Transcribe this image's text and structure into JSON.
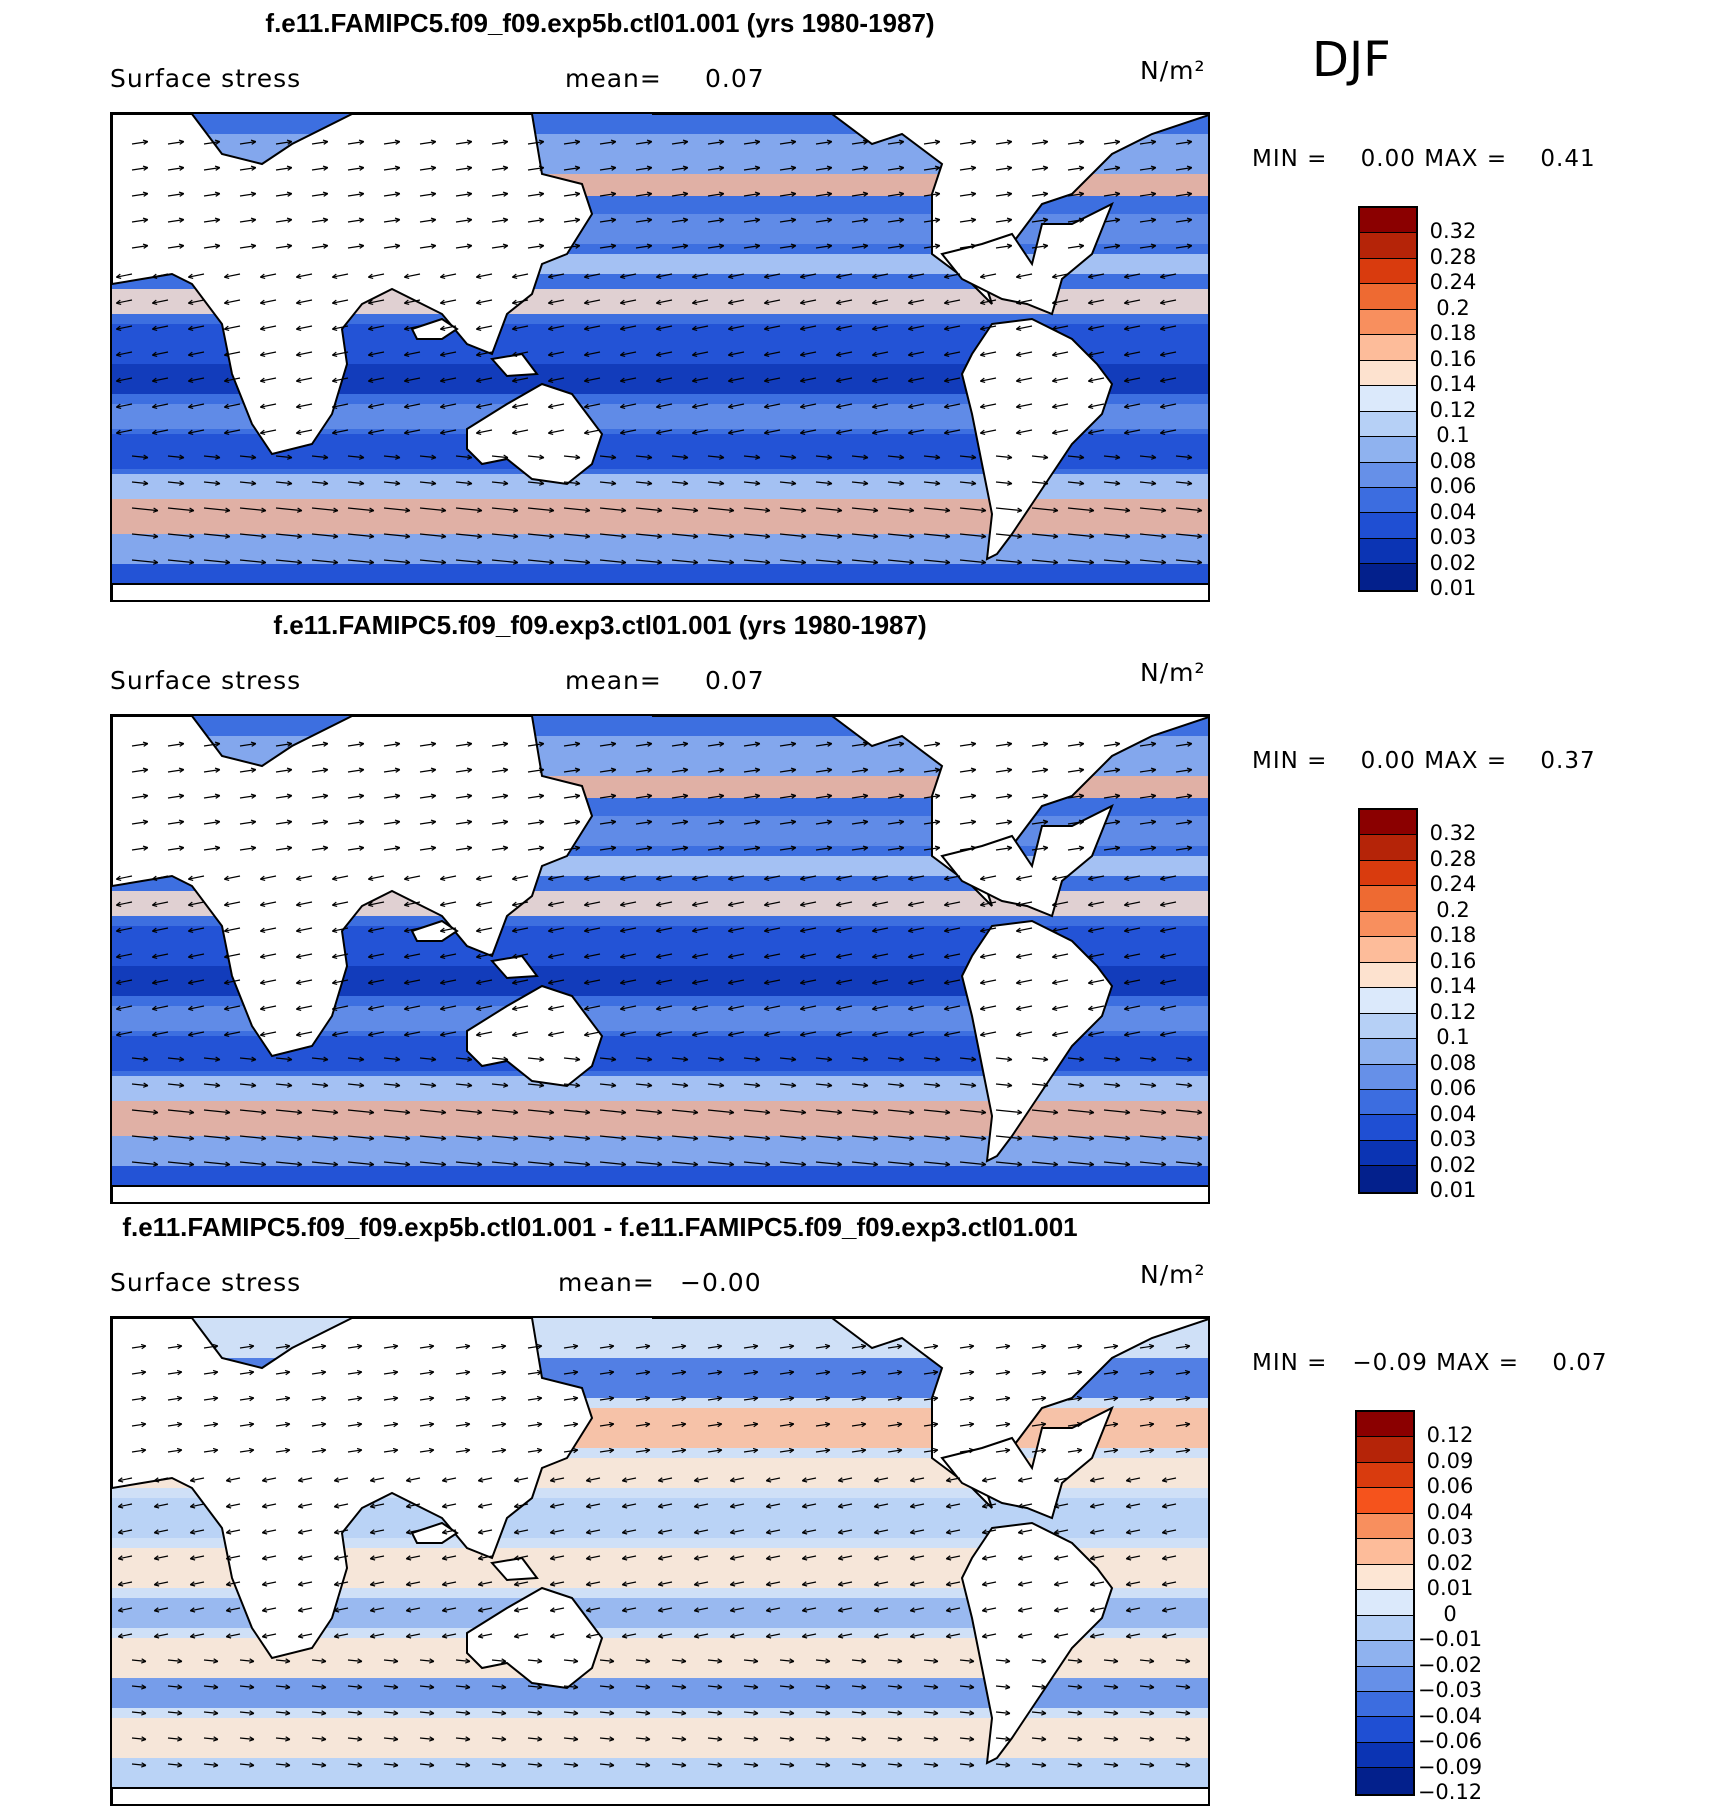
{
  "season": "DJF",
  "panels": [
    {
      "title": "f.e11.FAMIPC5.f09_f09.exp5b.ctl01.001 (yrs 1980-1987)",
      "variable": "Surface stress",
      "mean_label": "mean=",
      "mean_value": "0.07",
      "units": "N/m²",
      "min_label": "MIN =",
      "min_value": "0.00",
      "max_label": "MAX =",
      "max_value": "0.41",
      "colorbar": {
        "colors": [
          "#8b0000",
          "#b52408",
          "#d93b0e",
          "#ee6a32",
          "#f88f5e",
          "#fdbc9a",
          "#fde2cf",
          "#dbe9fb",
          "#b6d0f6",
          "#8fb2ef",
          "#6690e8",
          "#3c6de0",
          "#1f4fd3",
          "#0b34b4",
          "#03208c"
        ],
        "ticks": [
          "0.32",
          "0.28",
          "0.24",
          "0.2",
          "0.18",
          "0.16",
          "0.14",
          "0.12",
          "0.1",
          "0.08",
          "0.06",
          "0.04",
          "0.03",
          "0.02",
          "0.01"
        ]
      },
      "field": {
        "base_color": "#3d6fe0"
      }
    },
    {
      "title": "f.e11.FAMIPC5.f09_f09.exp3.ctl01.001 (yrs 1980-1987)",
      "variable": "Surface stress",
      "mean_label": "mean=",
      "mean_value": "0.07",
      "units": "N/m²",
      "min_label": "MIN =",
      "min_value": "0.00",
      "max_label": "MAX =",
      "max_value": "0.37",
      "colorbar": {
        "colors": [
          "#8b0000",
          "#b52408",
          "#d93b0e",
          "#ee6a32",
          "#f88f5e",
          "#fdbc9a",
          "#fde2cf",
          "#dbe9fb",
          "#b6d0f6",
          "#8fb2ef",
          "#6690e8",
          "#3c6de0",
          "#1f4fd3",
          "#0b34b4",
          "#03208c"
        ],
        "ticks": [
          "0.32",
          "0.28",
          "0.24",
          "0.2",
          "0.18",
          "0.16",
          "0.14",
          "0.12",
          "0.1",
          "0.08",
          "0.06",
          "0.04",
          "0.03",
          "0.02",
          "0.01"
        ]
      },
      "field": {
        "base_color": "#3d6fe0"
      }
    },
    {
      "title": "f.e11.FAMIPC5.f09_f09.exp5b.ctl01.001 - f.e11.FAMIPC5.f09_f09.exp3.ctl01.001",
      "variable": "Surface stress",
      "mean_label": "mean=",
      "mean_value": "−0.00",
      "units": "N/m²",
      "min_label": "MIN =",
      "min_value": "−0.09",
      "max_label": "MAX =",
      "max_value": "0.07",
      "colorbar": {
        "colors": [
          "#8b0000",
          "#b52408",
          "#d93b0e",
          "#f5531c",
          "#f88f5e",
          "#fdbc9a",
          "#fde6d4",
          "#dbe9fb",
          "#b6d0f6",
          "#8fb2ef",
          "#6690e8",
          "#3c6de0",
          "#1f4fd3",
          "#0b34b4",
          "#03208c"
        ],
        "ticks": [
          "0.12",
          "0.09",
          "0.06",
          "0.04",
          "0.03",
          "0.02",
          "0.01",
          "0",
          "−0.01",
          "−0.02",
          "−0.03",
          "−0.04",
          "−0.06",
          "−0.09",
          "−0.12"
        ]
      },
      "field": {
        "base_color": "#cfe0f7"
      }
    }
  ]
}
